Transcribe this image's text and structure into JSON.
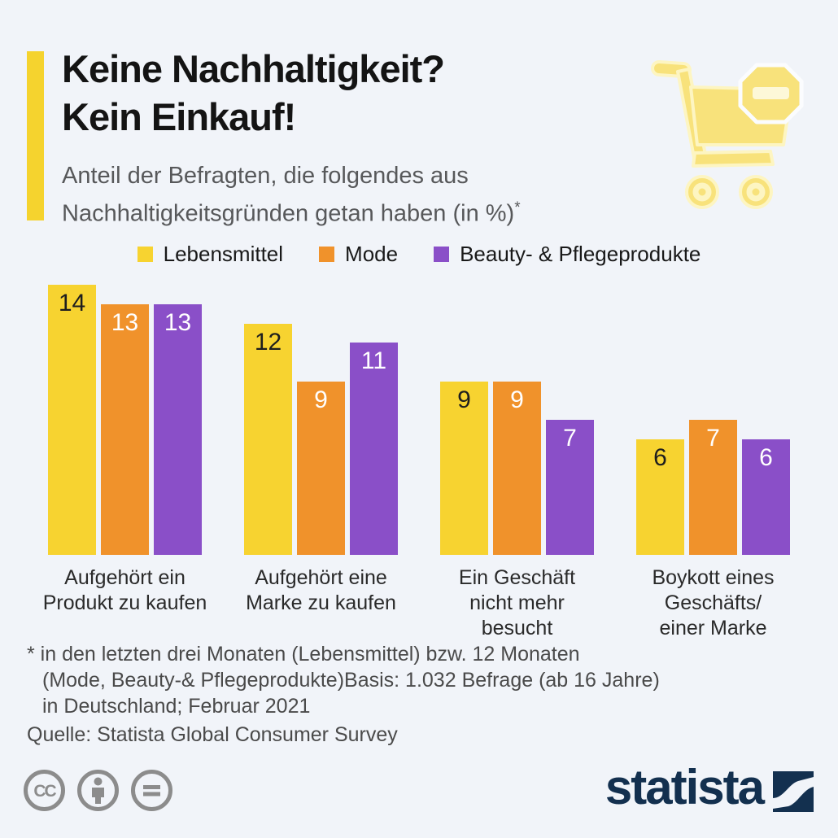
{
  "page": {
    "background": "#F1F4F9",
    "accent_color": "#F5D32E"
  },
  "header": {
    "title_line1": "Keine Nachhaltigkeit?",
    "title_line2": "Kein Einkauf!",
    "subtitle_line1": "Anteil der Befragten, die folgendes aus",
    "subtitle_line2": "Nachhaltigkeitsgründen getan haben (in %)",
    "subtitle_sup": "*",
    "cart_icon": "no-shopping-cart-icon",
    "cart_icon_color": "#F8E27B"
  },
  "chart_data": {
    "type": "bar",
    "title": "Keine Nachhaltigkeit? Kein Einkauf!",
    "subtitle": "Anteil der Befragten, die folgendes aus Nachhaltigkeitsgründen getan haben (in %)*",
    "unit": "%",
    "categories": [
      "Aufgehört ein Produkt zu kaufen",
      "Aufgehört eine Marke zu kaufen",
      "Ein Geschäft nicht mehr besucht",
      "Boykott eines Geschäfts/ einer Marke"
    ],
    "category_label_lines": [
      [
        "Aufgehört ein",
        "Produkt zu kaufen"
      ],
      [
        "Aufgehört eine",
        "Marke zu kaufen"
      ],
      [
        "Ein Geschäft",
        "nicht mehr",
        "besucht"
      ],
      [
        "Boykott eines",
        "Geschäfts/",
        "einer Marke"
      ]
    ],
    "series": [
      {
        "name": "Lebensmittel",
        "color": "#F7D330",
        "label_color": "#1E1E1E",
        "values": [
          14,
          12,
          9,
          6
        ]
      },
      {
        "name": "Mode",
        "color": "#F0922B",
        "label_color": "#FFFFFF",
        "values": [
          13,
          9,
          9,
          7
        ]
      },
      {
        "name": "Beauty- & Pflegeprodukte",
        "color": "#8A4FC8",
        "label_color": "#FFFFFF",
        "values": [
          13,
          11,
          7,
          6
        ]
      }
    ],
    "ylim": [
      0,
      14.1
    ],
    "grid": false,
    "legend_position": "top",
    "value_labels": "inside-top"
  },
  "footnote": {
    "line1": "* in den letzten drei Monaten (Lebensmittel) bzw. 12 Monaten",
    "line2": "(Mode, Beauty-& Pflegeprodukte)Basis: 1.032 Befrage (ab 16 Jahre)",
    "line3": "in Deutschland; Februar 2021"
  },
  "source": "Quelle: Statista Global Consumer Survey",
  "footer": {
    "license_icons": [
      "cc-icon",
      "attribution-icon",
      "no-derivatives-icon"
    ],
    "license_color": "#8C8C8C",
    "logo_text": "statista",
    "logo_color": "#13304F"
  }
}
